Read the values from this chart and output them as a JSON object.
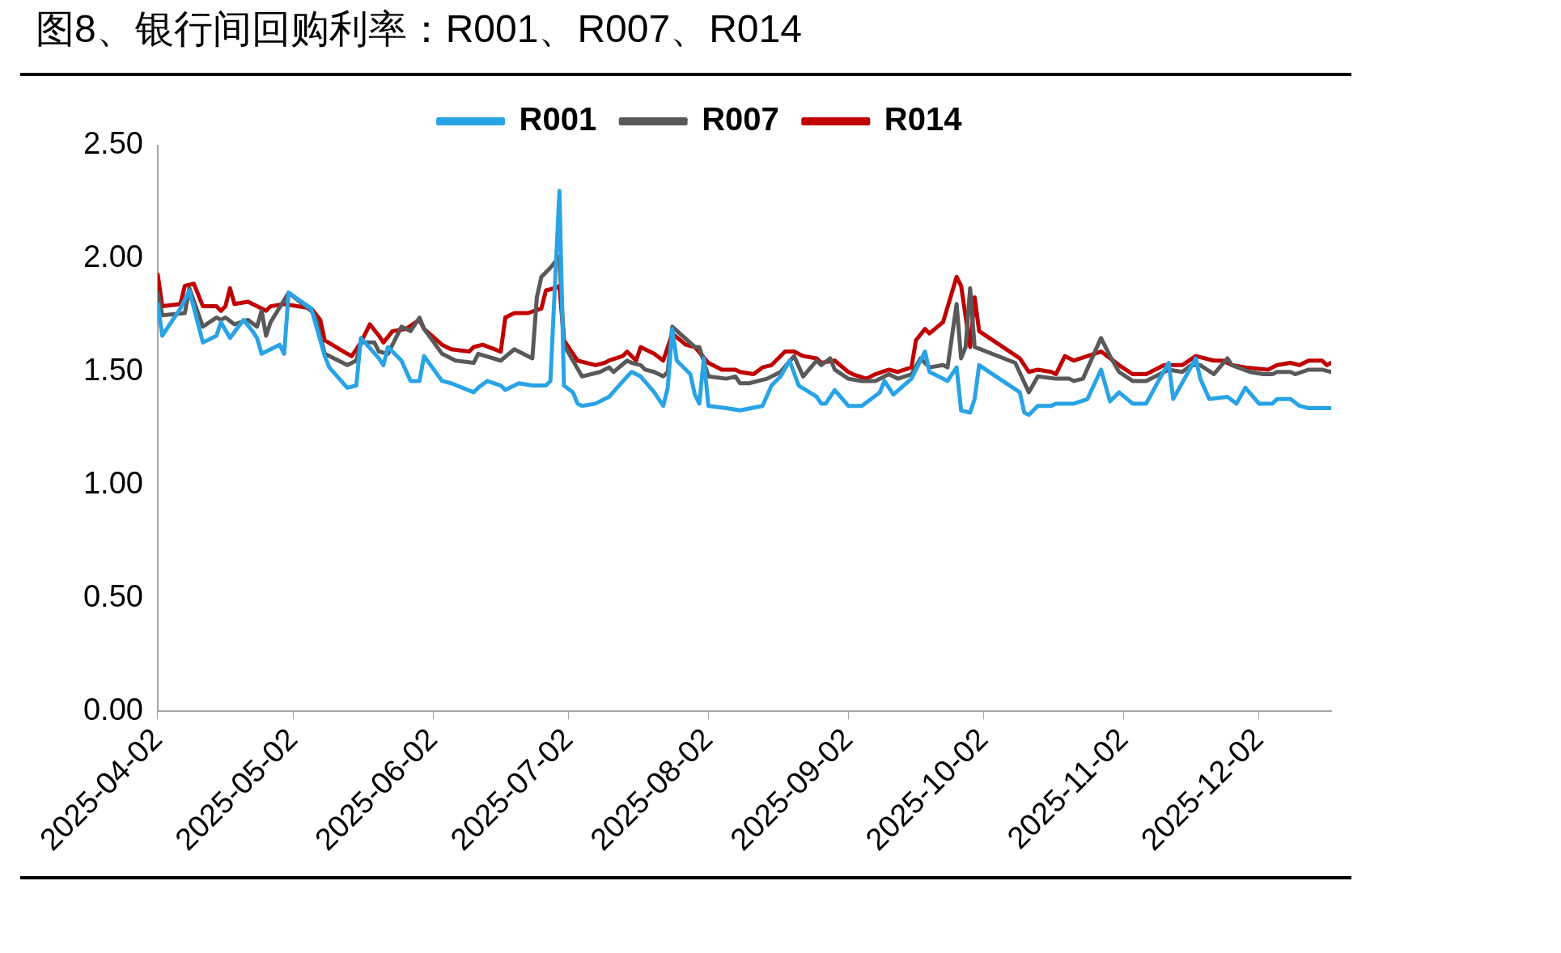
{
  "chart_data": {
    "type": "line",
    "title": "图8、银行间回购利率：R001、R007、R014",
    "xlim": [
      "2025-04-02",
      "2025-12-18"
    ],
    "xticks": [
      "2025-04-02",
      "2025-05-02",
      "2025-06-02",
      "2025-07-02",
      "2025-08-02",
      "2025-09-02",
      "2025-10-02",
      "2025-11-02",
      "2025-12-02"
    ],
    "ylim": [
      0,
      2.5
    ],
    "yticks": [
      {
        "value": 0,
        "label": "0.00"
      },
      {
        "value": 0.5,
        "label": "0.50"
      },
      {
        "value": 1,
        "label": "1.00"
      },
      {
        "value": 1.5,
        "label": "1.50"
      },
      {
        "value": 2,
        "label": "2.00"
      },
      {
        "value": 2.5,
        "label": "2.50"
      }
    ],
    "legend": "top",
    "grid": false,
    "series": [
      {
        "name": "R001",
        "color": "#29a3e6",
        "x": [
          "2025-04-02",
          "2025-04-03",
          "2025-04-07",
          "2025-04-09",
          "2025-04-12",
          "2025-04-15",
          "2025-04-16",
          "2025-04-18",
          "2025-04-21",
          "2025-04-23",
          "2025-04-24",
          "2025-04-25",
          "2025-04-29",
          "2025-04-30",
          "2025-05-01",
          "2025-05-06",
          "2025-05-09",
          "2025-05-10",
          "2025-05-14",
          "2025-05-16",
          "2025-05-17",
          "2025-05-21",
          "2025-05-22",
          "2025-05-23",
          "2025-05-26",
          "2025-05-28",
          "2025-05-30",
          "2025-05-31",
          "2025-06-04",
          "2025-06-06",
          "2025-06-11",
          "2025-06-12",
          "2025-06-14",
          "2025-06-17",
          "2025-06-18",
          "2025-06-21",
          "2025-06-24",
          "2025-06-27",
          "2025-06-28",
          "2025-06-30",
          "2025-07-01",
          "2025-07-03",
          "2025-07-04",
          "2025-07-05",
          "2025-07-08",
          "2025-07-11",
          "2025-07-15",
          "2025-07-16",
          "2025-07-18",
          "2025-07-21",
          "2025-07-23",
          "2025-07-24",
          "2025-07-25",
          "2025-07-26",
          "2025-07-29",
          "2025-07-30",
          "2025-07-31",
          "2025-08-01",
          "2025-08-02",
          "2025-08-06",
          "2025-08-09",
          "2025-08-14",
          "2025-08-16",
          "2025-08-18",
          "2025-08-20",
          "2025-08-22",
          "2025-08-26",
          "2025-08-27",
          "2025-08-28",
          "2025-08-30",
          "2025-09-02",
          "2025-09-05",
          "2025-09-09",
          "2025-09-10",
          "2025-09-12",
          "2025-09-16",
          "2025-09-19",
          "2025-09-20",
          "2025-09-22",
          "2025-09-24",
          "2025-09-26",
          "2025-09-27",
          "2025-09-29",
          "2025-09-30",
          "2025-10-01",
          "2025-10-10",
          "2025-10-11",
          "2025-10-12",
          "2025-10-14",
          "2025-10-17",
          "2025-10-18",
          "2025-10-22",
          "2025-10-25",
          "2025-10-28",
          "2025-10-30",
          "2025-11-01",
          "2025-11-04",
          "2025-11-07",
          "2025-11-10",
          "2025-11-12",
          "2025-11-13",
          "2025-11-18",
          "2025-11-19",
          "2025-11-21",
          "2025-11-25",
          "2025-11-27",
          "2025-11-29",
          "2025-12-02",
          "2025-12-05",
          "2025-12-06",
          "2025-12-09",
          "2025-12-11",
          "2025-12-13",
          "2025-12-18"
        ],
        "values": [
          1.8,
          1.66,
          1.78,
          1.86,
          1.63,
          1.66,
          1.72,
          1.65,
          1.73,
          1.68,
          1.65,
          1.58,
          1.62,
          1.58,
          1.85,
          1.78,
          1.57,
          1.52,
          1.43,
          1.44,
          1.65,
          1.56,
          1.53,
          1.61,
          1.55,
          1.46,
          1.46,
          1.57,
          1.46,
          1.45,
          1.41,
          1.43,
          1.46,
          1.44,
          1.42,
          1.45,
          1.44,
          1.44,
          1.46,
          2.3,
          1.44,
          1.41,
          1.36,
          1.35,
          1.36,
          1.39,
          1.48,
          1.5,
          1.48,
          1.41,
          1.35,
          1.43,
          1.69,
          1.55,
          1.49,
          1.4,
          1.36,
          1.56,
          1.35,
          1.34,
          1.33,
          1.35,
          1.44,
          1.48,
          1.55,
          1.44,
          1.39,
          1.36,
          1.36,
          1.42,
          1.35,
          1.35,
          1.41,
          1.46,
          1.4,
          1.47,
          1.59,
          1.5,
          1.48,
          1.46,
          1.52,
          1.33,
          1.32,
          1.38,
          1.53,
          1.41,
          1.32,
          1.31,
          1.35,
          1.35,
          1.36,
          1.36,
          1.38,
          1.51,
          1.37,
          1.41,
          1.36,
          1.36,
          1.47,
          1.54,
          1.38,
          1.56,
          1.47,
          1.38,
          1.39,
          1.36,
          1.43,
          1.36,
          1.36,
          1.38,
          1.38,
          1.35,
          1.34,
          1.34
        ]
      },
      {
        "name": "R007",
        "color": "#595959",
        "x": [
          "2025-04-02",
          "2025-04-03",
          "2025-04-08",
          "2025-04-09",
          "2025-04-12",
          "2025-04-15",
          "2025-04-16",
          "2025-04-17",
          "2025-04-19",
          "2025-04-22",
          "2025-04-24",
          "2025-04-25",
          "2025-04-26",
          "2025-04-27",
          "2025-05-01",
          "2025-05-06",
          "2025-05-07",
          "2025-05-09",
          "2025-05-14",
          "2025-05-16",
          "2025-05-17",
          "2025-05-20",
          "2025-05-21",
          "2025-05-23",
          "2025-05-26",
          "2025-05-28",
          "2025-05-30",
          "2025-05-31",
          "2025-06-04",
          "2025-06-07",
          "2025-06-11",
          "2025-06-12",
          "2025-06-17",
          "2025-06-20",
          "2025-06-24",
          "2025-06-25",
          "2025-06-26",
          "2025-06-28",
          "2025-06-30",
          "2025-07-01",
          "2025-07-05",
          "2025-07-09",
          "2025-07-11",
          "2025-07-12",
          "2025-07-15",
          "2025-07-16",
          "2025-07-18",
          "2025-07-19",
          "2025-07-21",
          "2025-07-23",
          "2025-07-24",
          "2025-07-25",
          "2025-07-30",
          "2025-07-31",
          "2025-08-02",
          "2025-08-06",
          "2025-08-08",
          "2025-08-09",
          "2025-08-11",
          "2025-08-15",
          "2025-08-18",
          "2025-08-21",
          "2025-08-23",
          "2025-08-26",
          "2025-08-27",
          "2025-08-29",
          "2025-08-30",
          "2025-09-02",
          "2025-09-05",
          "2025-09-08",
          "2025-09-11",
          "2025-09-13",
          "2025-09-16",
          "2025-09-18",
          "2025-09-20",
          "2025-09-23",
          "2025-09-24",
          "2025-09-26",
          "2025-09-27",
          "2025-09-28",
          "2025-09-29",
          "2025-09-30",
          "2025-10-09",
          "2025-10-12",
          "2025-10-14",
          "2025-10-18",
          "2025-10-21",
          "2025-10-22",
          "2025-10-24",
          "2025-10-28",
          "2025-10-30",
          "2025-11-01",
          "2025-11-04",
          "2025-11-07",
          "2025-11-12",
          "2025-11-15",
          "2025-11-17",
          "2025-11-19",
          "2025-11-22",
          "2025-11-25",
          "2025-11-26",
          "2025-11-30",
          "2025-12-03",
          "2025-12-05",
          "2025-12-06",
          "2025-12-09",
          "2025-12-10",
          "2025-12-13",
          "2025-12-16",
          "2025-12-18"
        ],
        "values": [
          1.85,
          1.75,
          1.76,
          1.87,
          1.7,
          1.74,
          1.73,
          1.74,
          1.71,
          1.73,
          1.7,
          1.77,
          1.66,
          1.72,
          1.85,
          1.77,
          1.74,
          1.58,
          1.53,
          1.55,
          1.63,
          1.63,
          1.59,
          1.58,
          1.7,
          1.68,
          1.74,
          1.69,
          1.58,
          1.55,
          1.54,
          1.58,
          1.55,
          1.6,
          1.56,
          1.83,
          1.92,
          1.96,
          2.01,
          1.62,
          1.48,
          1.5,
          1.52,
          1.5,
          1.55,
          1.54,
          1.53,
          1.51,
          1.5,
          1.48,
          1.5,
          1.7,
          1.61,
          1.61,
          1.48,
          1.47,
          1.48,
          1.45,
          1.45,
          1.47,
          1.5,
          1.57,
          1.48,
          1.55,
          1.53,
          1.56,
          1.51,
          1.47,
          1.46,
          1.46,
          1.49,
          1.47,
          1.49,
          1.56,
          1.52,
          1.53,
          1.52,
          1.8,
          1.56,
          1.61,
          1.87,
          1.61,
          1.54,
          1.41,
          1.48,
          1.47,
          1.47,
          1.46,
          1.47,
          1.65,
          1.57,
          1.5,
          1.46,
          1.46,
          1.51,
          1.5,
          1.53,
          1.53,
          1.49,
          1.56,
          1.53,
          1.5,
          1.49,
          1.49,
          1.5,
          1.5,
          1.49,
          1.51,
          1.51,
          1.5
        ]
      },
      {
        "name": "R014",
        "color": "#c00000",
        "x": [
          "2025-04-02",
          "2025-04-03",
          "2025-04-07",
          "2025-04-08",
          "2025-04-10",
          "2025-04-12",
          "2025-04-15",
          "2025-04-16",
          "2025-04-17",
          "2025-04-18",
          "2025-04-19",
          "2025-04-22",
          "2025-04-23",
          "2025-04-24",
          "2025-04-26",
          "2025-04-27",
          "2025-04-30",
          "2025-05-06",
          "2025-05-08",
          "2025-05-09",
          "2025-05-14",
          "2025-05-15",
          "2025-05-17",
          "2025-05-19",
          "2025-05-21",
          "2025-05-22",
          "2025-05-24",
          "2025-05-27",
          "2025-05-30",
          "2025-05-31",
          "2025-06-04",
          "2025-06-06",
          "2025-06-10",
          "2025-06-11",
          "2025-06-13",
          "2025-06-17",
          "2025-06-18",
          "2025-06-20",
          "2025-06-23",
          "2025-06-26",
          "2025-06-27",
          "2025-06-29",
          "2025-06-30",
          "2025-07-01",
          "2025-07-04",
          "2025-07-08",
          "2025-07-10",
          "2025-07-11",
          "2025-07-14",
          "2025-07-15",
          "2025-07-17",
          "2025-07-18",
          "2025-07-21",
          "2025-07-23",
          "2025-07-25",
          "2025-07-28",
          "2025-07-30",
          "2025-08-02",
          "2025-08-05",
          "2025-08-08",
          "2025-08-09",
          "2025-08-12",
          "2025-08-14",
          "2025-08-16",
          "2025-08-19",
          "2025-08-21",
          "2025-08-23",
          "2025-08-26",
          "2025-08-27",
          "2025-08-30",
          "2025-09-02",
          "2025-09-03",
          "2025-09-06",
          "2025-09-08",
          "2025-09-11",
          "2025-09-13",
          "2025-09-16",
          "2025-09-17",
          "2025-09-19",
          "2025-09-20",
          "2025-09-23",
          "2025-09-26",
          "2025-09-27",
          "2025-09-29",
          "2025-09-30",
          "2025-10-01",
          "2025-10-10",
          "2025-10-12",
          "2025-10-14",
          "2025-10-17",
          "2025-10-18",
          "2025-10-20",
          "2025-10-22",
          "2025-10-28",
          "2025-11-01",
          "2025-11-04",
          "2025-11-07",
          "2025-11-11",
          "2025-11-15",
          "2025-11-18",
          "2025-11-22",
          "2025-11-24",
          "2025-11-26",
          "2025-11-29",
          "2025-12-04",
          "2025-12-06",
          "2025-12-09",
          "2025-12-11",
          "2025-12-13",
          "2025-12-16",
          "2025-12-17",
          "2025-12-18"
        ],
        "values": [
          1.93,
          1.79,
          1.8,
          1.88,
          1.89,
          1.79,
          1.79,
          1.77,
          1.79,
          1.87,
          1.8,
          1.81,
          1.8,
          1.79,
          1.77,
          1.79,
          1.8,
          1.78,
          1.73,
          1.64,
          1.58,
          1.57,
          1.63,
          1.71,
          1.66,
          1.63,
          1.68,
          1.69,
          1.73,
          1.69,
          1.62,
          1.6,
          1.59,
          1.61,
          1.62,
          1.59,
          1.74,
          1.76,
          1.76,
          1.78,
          1.86,
          1.87,
          1.88,
          1.64,
          1.55,
          1.53,
          1.54,
          1.55,
          1.57,
          1.59,
          1.55,
          1.61,
          1.58,
          1.55,
          1.67,
          1.62,
          1.61,
          1.54,
          1.51,
          1.51,
          1.5,
          1.49,
          1.52,
          1.53,
          1.59,
          1.59,
          1.57,
          1.56,
          1.54,
          1.55,
          1.5,
          1.49,
          1.47,
          1.49,
          1.51,
          1.5,
          1.52,
          1.64,
          1.69,
          1.67,
          1.72,
          1.92,
          1.88,
          1.61,
          1.83,
          1.68,
          1.56,
          1.5,
          1.51,
          1.5,
          1.49,
          1.57,
          1.55,
          1.59,
          1.53,
          1.49,
          1.49,
          1.53,
          1.53,
          1.57,
          1.55,
          1.55,
          1.53,
          1.52,
          1.51,
          1.53,
          1.54,
          1.53,
          1.55,
          1.55,
          1.53,
          1.54
        ]
      }
    ]
  }
}
